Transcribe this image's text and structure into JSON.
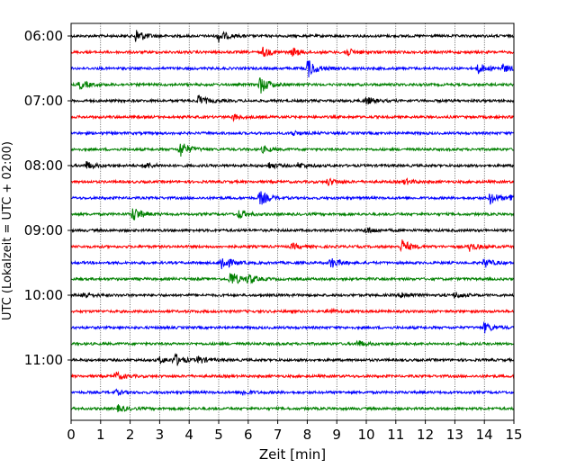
{
  "chart_data": {
    "type": "line",
    "title": "",
    "xlabel": "Zeit  [min]",
    "ylabel": "UTC (Lokalzeit = UTC + 02:00)",
    "xlim": [
      0,
      15
    ],
    "x_ticks": [
      "0",
      "1",
      "2",
      "3",
      "4",
      "5",
      "6",
      "7",
      "8",
      "9",
      "10",
      "11",
      "12",
      "13",
      "14",
      "15"
    ],
    "y_ticks": [
      "06:00",
      "07:00",
      "08:00",
      "09:00",
      "10:00",
      "11:00"
    ],
    "grid": "vertical dotted at every minute",
    "row_minutes": 15,
    "rows_start": "06:00",
    "color_cycle": [
      "#000000",
      "#ff0000",
      "#0000ff",
      "#008000"
    ],
    "series": [
      {
        "start": "06:00",
        "events": [
          {
            "t": 2.2,
            "a": 1.6
          },
          {
            "t": 5.0,
            "a": 1.3
          }
        ]
      },
      {
        "start": "06:15",
        "events": [
          {
            "t": 6.5,
            "a": 1.0
          },
          {
            "t": 7.5,
            "a": 0.9
          },
          {
            "t": 9.3,
            "a": 0.9
          }
        ]
      },
      {
        "start": "06:30",
        "events": [
          {
            "t": 8.0,
            "a": 2.2
          },
          {
            "t": 13.8,
            "a": 1.1
          },
          {
            "t": 14.6,
            "a": 0.9
          }
        ]
      },
      {
        "start": "06:45",
        "events": [
          {
            "t": 0.3,
            "a": 0.9
          },
          {
            "t": 6.4,
            "a": 2.0
          }
        ]
      },
      {
        "start": "07:00",
        "events": [
          {
            "t": 4.3,
            "a": 1.2
          },
          {
            "t": 10.0,
            "a": 0.8
          }
        ]
      },
      {
        "start": "07:15",
        "events": [
          {
            "t": 5.5,
            "a": 0.6
          }
        ]
      },
      {
        "start": "07:30",
        "events": [
          {
            "t": 7.5,
            "a": 0.5
          }
        ]
      },
      {
        "start": "07:45",
        "events": [
          {
            "t": 3.7,
            "a": 1.8
          },
          {
            "t": 6.5,
            "a": 0.6
          }
        ]
      },
      {
        "start": "08:00",
        "events": [
          {
            "t": 0.5,
            "a": 0.9
          },
          {
            "t": 2.5,
            "a": 0.7
          },
          {
            "t": 6.7,
            "a": 0.7
          },
          {
            "t": 7.7,
            "a": 0.6
          }
        ]
      },
      {
        "start": "08:15",
        "events": [
          {
            "t": 8.7,
            "a": 0.8
          },
          {
            "t": 11.3,
            "a": 0.6
          }
        ]
      },
      {
        "start": "08:30",
        "events": [
          {
            "t": 6.4,
            "a": 1.6
          },
          {
            "t": 14.2,
            "a": 1.3
          },
          {
            "t": 14.9,
            "a": 1.0
          }
        ]
      },
      {
        "start": "08:45",
        "events": [
          {
            "t": 2.1,
            "a": 1.7
          },
          {
            "t": 5.7,
            "a": 1.0
          }
        ]
      },
      {
        "start": "09:00",
        "events": [
          {
            "t": 10.0,
            "a": 0.7
          }
        ]
      },
      {
        "start": "09:15",
        "events": [
          {
            "t": 11.2,
            "a": 1.6
          },
          {
            "t": 13.5,
            "a": 0.9
          },
          {
            "t": 7.5,
            "a": 0.6
          }
        ]
      },
      {
        "start": "09:30",
        "events": [
          {
            "t": 5.1,
            "a": 1.8
          },
          {
            "t": 8.8,
            "a": 1.2
          },
          {
            "t": 14.0,
            "a": 1.0
          }
        ]
      },
      {
        "start": "09:45",
        "events": [
          {
            "t": 5.4,
            "a": 1.8
          },
          {
            "t": 6.0,
            "a": 1.0
          }
        ]
      },
      {
        "start": "10:00",
        "events": [
          {
            "t": 0.4,
            "a": 0.8
          },
          {
            "t": 11.2,
            "a": 0.7
          },
          {
            "t": 13.0,
            "a": 0.7
          }
        ]
      },
      {
        "start": "10:15",
        "events": [
          {
            "t": 8.7,
            "a": 0.5
          }
        ]
      },
      {
        "start": "10:30",
        "events": [
          {
            "t": 14.0,
            "a": 1.1
          }
        ]
      },
      {
        "start": "10:45",
        "events": [
          {
            "t": 9.7,
            "a": 0.7
          }
        ]
      },
      {
        "start": "11:00",
        "events": [
          {
            "t": 3.5,
            "a": 1.4
          },
          {
            "t": 4.3,
            "a": 0.8
          },
          {
            "t": 3.0,
            "a": 0.6
          }
        ]
      },
      {
        "start": "11:15",
        "events": [
          {
            "t": 1.5,
            "a": 0.9
          }
        ]
      },
      {
        "start": "11:30",
        "events": [
          {
            "t": 5.8,
            "a": 0.6
          },
          {
            "t": 1.5,
            "a": 0.5
          }
        ]
      },
      {
        "start": "11:45",
        "events": [
          {
            "t": 1.6,
            "a": 0.7
          }
        ]
      }
    ]
  }
}
